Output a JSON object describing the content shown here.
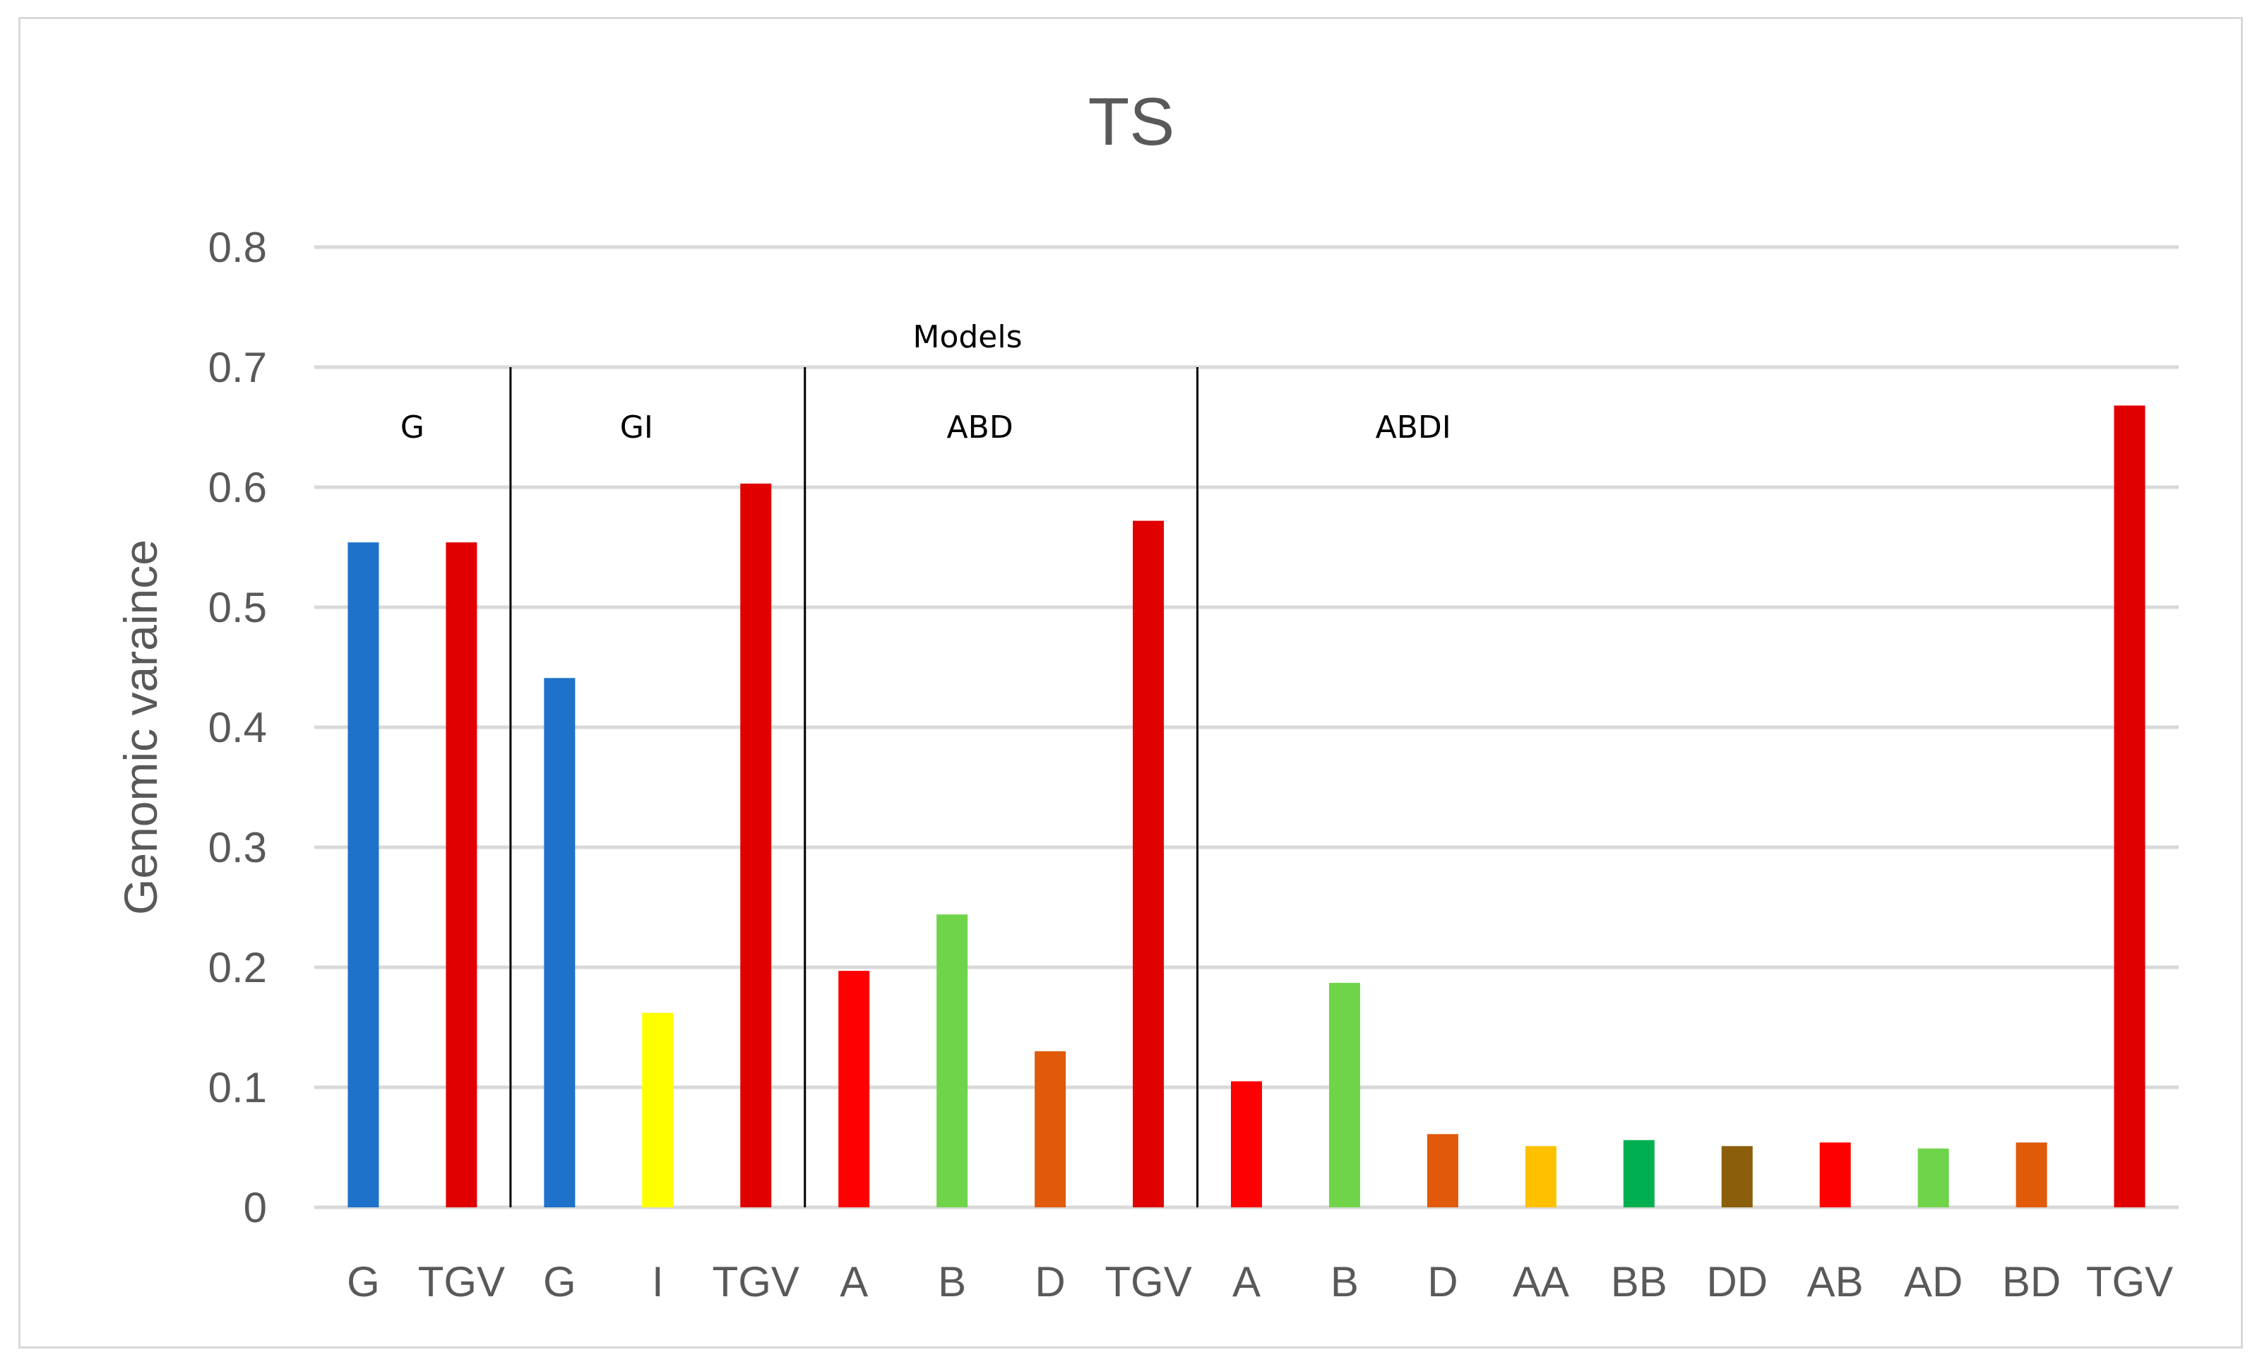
{
  "chart_data": {
    "type": "bar",
    "title": "TS",
    "ylabel": "Genomic varaince",
    "xlabel": "",
    "ylim": [
      0,
      0.8
    ],
    "yticks": [
      "0",
      "0.1",
      "0.2",
      "0.3",
      "0.4",
      "0.5",
      "0.6",
      "0.7",
      "0.8"
    ],
    "grid": true,
    "models_label": "Models",
    "groups": [
      {
        "label": "G",
        "start": 0,
        "end": 1
      },
      {
        "label": "GI",
        "start": 2,
        "end": 4
      },
      {
        "label": "ABD",
        "start": 5,
        "end": 8
      },
      {
        "label": "ABDI",
        "start": 9,
        "end": 18
      }
    ],
    "categories": [
      "G",
      "TGV",
      "G",
      "I",
      "TGV",
      "A",
      "B",
      "D",
      "TGV",
      "A",
      "B",
      "D",
      "AA",
      "BB",
      "DD",
      "AB",
      "AD",
      "BD",
      "TGV"
    ],
    "values": [
      0.554,
      0.554,
      0.441,
      0.162,
      0.603,
      0.197,
      0.244,
      0.13,
      0.572,
      0.105,
      0.187,
      0.061,
      0.051,
      0.056,
      0.051,
      0.054,
      0.049,
      0.054,
      0.668
    ],
    "colors": [
      "#1f72c9",
      "#e00000",
      "#1f72c9",
      "#ffff00",
      "#e00000",
      "#ff0000",
      "#70d44b",
      "#e05a0a",
      "#e00000",
      "#ff0000",
      "#70d44b",
      "#e05a0a",
      "#ffc000",
      "#00b050",
      "#8b5e0c",
      "#ff0000",
      "#70d44b",
      "#e05a0a",
      "#e00000"
    ]
  }
}
